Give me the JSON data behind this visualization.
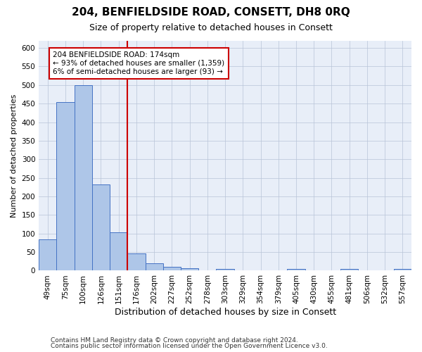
{
  "title": "204, BENFIELDSIDE ROAD, CONSETT, DH8 0RQ",
  "subtitle": "Size of property relative to detached houses in Consett",
  "xlabel": "Distribution of detached houses by size in Consett",
  "ylabel": "Number of detached properties",
  "categories": [
    "49sqm",
    "75sqm",
    "100sqm",
    "126sqm",
    "151sqm",
    "176sqm",
    "202sqm",
    "227sqm",
    "252sqm",
    "278sqm",
    "303sqm",
    "329sqm",
    "354sqm",
    "379sqm",
    "405sqm",
    "430sqm",
    "455sqm",
    "481sqm",
    "506sqm",
    "532sqm",
    "557sqm"
  ],
  "values": [
    85,
    455,
    500,
    232,
    103,
    46,
    19,
    11,
    7,
    0,
    5,
    0,
    0,
    0,
    5,
    0,
    0,
    5,
    0,
    0,
    5
  ],
  "bar_color": "#aec6e8",
  "bar_edge_color": "#4472c4",
  "highlight_line_color": "#cc0000",
  "annotation_text": "204 BENFIELDSIDE ROAD: 174sqm\n← 93% of detached houses are smaller (1,359)\n6% of semi-detached houses are larger (93) →",
  "annotation_box_color": "#cc0000",
  "annotation_fill": "#ffffff",
  "ylim": [
    0,
    620
  ],
  "yticks": [
    0,
    50,
    100,
    150,
    200,
    250,
    300,
    350,
    400,
    450,
    500,
    550,
    600
  ],
  "footer1": "Contains HM Land Registry data © Crown copyright and database right 2024.",
  "footer2": "Contains public sector information licensed under the Open Government Licence v3.0.",
  "bg_color": "#e8eef8",
  "title_fontsize": 11,
  "subtitle_fontsize": 9,
  "xlabel_fontsize": 9,
  "ylabel_fontsize": 8,
  "tick_fontsize": 7.5,
  "annot_fontsize": 7.5,
  "footer_fontsize": 6.5
}
